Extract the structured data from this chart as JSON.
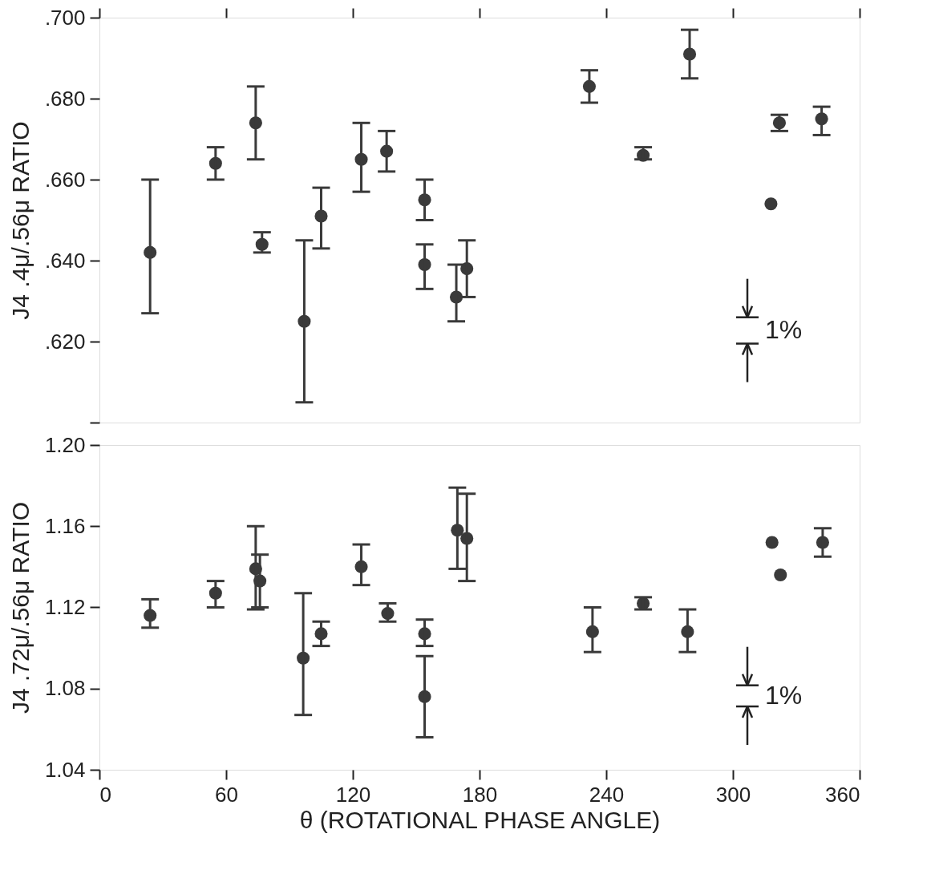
{
  "chart_data": [
    {
      "type": "scatter",
      "ylabel": "J4 .4μ/.56μ RATIO",
      "xlim": [
        0,
        360
      ],
      "xticks": [
        0,
        60,
        120,
        180,
        240,
        300,
        360
      ],
      "ylim": [
        0.6,
        0.7
      ],
      "yticks": [
        {
          "value": 0.6,
          "label": null
        },
        {
          "value": 0.62,
          "label": ".620"
        },
        {
          "value": 0.64,
          "label": ".640"
        },
        {
          "value": 0.66,
          "label": ".660"
        },
        {
          "value": 0.68,
          "label": ".680"
        },
        {
          "value": 0.7,
          "label": ".700"
        }
      ],
      "tick_labels": "y",
      "grid": false,
      "marker": "circle",
      "annotations": [
        "1%"
      ],
      "series": [
        {
          "color": "#3a3a3a",
          "x": [
            24,
            55,
            74,
            77,
            97,
            105,
            124,
            136,
            154,
            154,
            169,
            174,
            232,
            257.5,
            279.5,
            318,
            322,
            342
          ],
          "values": [
            0.642,
            0.664,
            0.674,
            0.644,
            0.625,
            0.651,
            0.665,
            0.667,
            0.655,
            0.639,
            0.631,
            0.638,
            0.683,
            0.666,
            0.691,
            0.654,
            0.674,
            0.675
          ],
          "errors": [
            [
              0.627,
              0.66
            ],
            [
              0.66,
              0.668
            ],
            [
              0.665,
              0.683
            ],
            [
              0.642,
              0.647
            ],
            [
              0.605,
              0.645
            ],
            [
              0.643,
              0.658
            ],
            [
              0.657,
              0.674
            ],
            [
              0.662,
              0.672
            ],
            [
              0.65,
              0.66
            ],
            [
              0.633,
              0.644
            ],
            [
              0.625,
              0.639
            ],
            [
              0.631,
              0.645
            ],
            [
              0.679,
              0.687
            ],
            [
              0.665,
              0.668
            ],
            [
              0.685,
              0.697
            ],
            null,
            [
              0.672,
              0.676
            ],
            [
              0.671,
              0.678
            ]
          ]
        }
      ]
    },
    {
      "type": "scatter",
      "ylabel": "J4 .72μ/.56μ RATIO",
      "xlabel": "θ (ROTATIONAL PHASE ANGLE)",
      "xlim": [
        0,
        360
      ],
      "xticks": [
        0,
        60,
        120,
        180,
        240,
        300,
        360
      ],
      "ylim": [
        1.04,
        1.2
      ],
      "yticks": [
        {
          "value": 1.04,
          "label": "1.04"
        },
        {
          "value": 1.08,
          "label": "1.08"
        },
        {
          "value": 1.12,
          "label": "1.12"
        },
        {
          "value": 1.16,
          "label": "1.16"
        },
        {
          "value": 1.2,
          "label": "1.20"
        }
      ],
      "grid": false,
      "marker": "circle",
      "annotations": [
        "1%"
      ],
      "series": [
        {
          "color": "#3a3a3a",
          "x": [
            24,
            55,
            74,
            76,
            96.5,
            105,
            124,
            136.5,
            154,
            154,
            169.5,
            174,
            233.5,
            257.5,
            278.5,
            318.5,
            322.5,
            342.5
          ],
          "values": [
            1.116,
            1.127,
            1.139,
            1.133,
            1.095,
            1.107,
            1.14,
            1.117,
            1.107,
            1.076,
            1.158,
            1.154,
            1.108,
            1.122,
            1.108,
            1.152,
            1.136,
            1.152
          ],
          "errors": [
            [
              1.11,
              1.124
            ],
            [
              1.12,
              1.133
            ],
            [
              1.119,
              1.16
            ],
            [
              1.12,
              1.146
            ],
            [
              1.067,
              1.127
            ],
            [
              1.101,
              1.113
            ],
            [
              1.131,
              1.151
            ],
            [
              1.113,
              1.122
            ],
            [
              1.101,
              1.114
            ],
            [
              1.056,
              1.096
            ],
            [
              1.139,
              1.179
            ],
            [
              1.133,
              1.176
            ],
            [
              1.098,
              1.12
            ],
            [
              1.119,
              1.125
            ],
            [
              1.098,
              1.119
            ],
            null,
            null,
            [
              1.145,
              1.159
            ]
          ]
        }
      ]
    }
  ]
}
